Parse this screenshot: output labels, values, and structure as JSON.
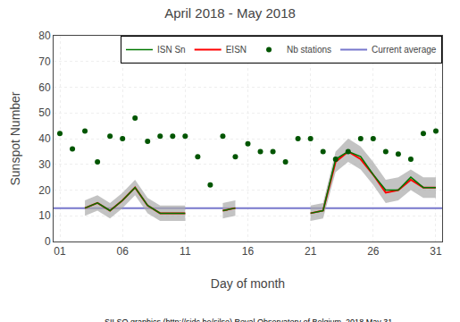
{
  "chart_data": {
    "type": "line",
    "title": "April 2018 - May 2018",
    "x_label": "Day of month",
    "y_label": "Sunspot Number",
    "annotations": [
      "SILSO graphics (http://sidc.be/silso) Royal Observatory of Belgium, 2018 May 31"
    ],
    "x": [
      1,
      2,
      3,
      4,
      5,
      6,
      7,
      8,
      9,
      10,
      11,
      12,
      13,
      14,
      15,
      16,
      17,
      18,
      19,
      20,
      21,
      22,
      23,
      24,
      25,
      26,
      27,
      28,
      29,
      30,
      31
    ],
    "series": [
      {
        "name": "ISN Sn",
        "type": "line",
        "color": "#007700",
        "values": [
          null,
          null,
          13,
          15,
          12,
          16,
          21,
          14,
          11,
          11,
          11,
          null,
          null,
          12,
          13,
          null,
          null,
          null,
          null,
          null,
          11,
          12,
          32,
          35,
          33,
          26,
          20,
          20,
          25,
          21,
          21
        ]
      },
      {
        "name": "EISN",
        "type": "line",
        "color": "#ff0000",
        "values": [
          null,
          null,
          13,
          15,
          12,
          16,
          21,
          14,
          11,
          11,
          11,
          null,
          null,
          12,
          13,
          null,
          null,
          null,
          null,
          null,
          11,
          12,
          31,
          35,
          32,
          26,
          19,
          20,
          24,
          21,
          21
        ],
        "upper": [
          null,
          null,
          16,
          18,
          15,
          19,
          24,
          17,
          14,
          14,
          14,
          null,
          null,
          15,
          16,
          null,
          null,
          null,
          null,
          null,
          14,
          15,
          35,
          40,
          37,
          31,
          24,
          25,
          28,
          25,
          25
        ],
        "lower": [
          null,
          null,
          10,
          12,
          9,
          13,
          18,
          11,
          8,
          8,
          8,
          null,
          null,
          9,
          10,
          null,
          null,
          null,
          null,
          null,
          8,
          9,
          27,
          31,
          28,
          22,
          15,
          16,
          20,
          17,
          17
        ],
        "band_color": "#aaaaaa"
      },
      {
        "name": "Nb stations",
        "type": "scatter",
        "color": "#005500",
        "marker": "circle",
        "values": [
          42,
          36,
          43,
          31,
          41,
          40,
          48,
          39,
          41,
          41,
          41,
          33,
          22,
          41,
          33,
          38,
          35,
          35,
          31,
          40,
          40,
          35,
          32,
          35,
          40,
          40,
          35,
          34,
          32,
          42,
          43
        ]
      },
      {
        "name": "Current average",
        "type": "hline",
        "color": "#7777cc",
        "value": 13.0
      }
    ],
    "xlim": [
      0.5,
      31.5
    ],
    "ylim": [
      0,
      80
    ],
    "xticks": [
      {
        "value": 1,
        "label": "01"
      },
      {
        "value": 6,
        "label": "06"
      },
      {
        "value": 11,
        "label": "11"
      },
      {
        "value": 16,
        "label": "16"
      },
      {
        "value": 21,
        "label": "21"
      },
      {
        "value": 26,
        "label": "26"
      },
      {
        "value": 31,
        "label": "31"
      }
    ],
    "yticks": [
      0,
      10,
      20,
      30,
      40,
      50,
      60,
      70,
      80
    ],
    "grid": true,
    "legend": "upper right"
  }
}
